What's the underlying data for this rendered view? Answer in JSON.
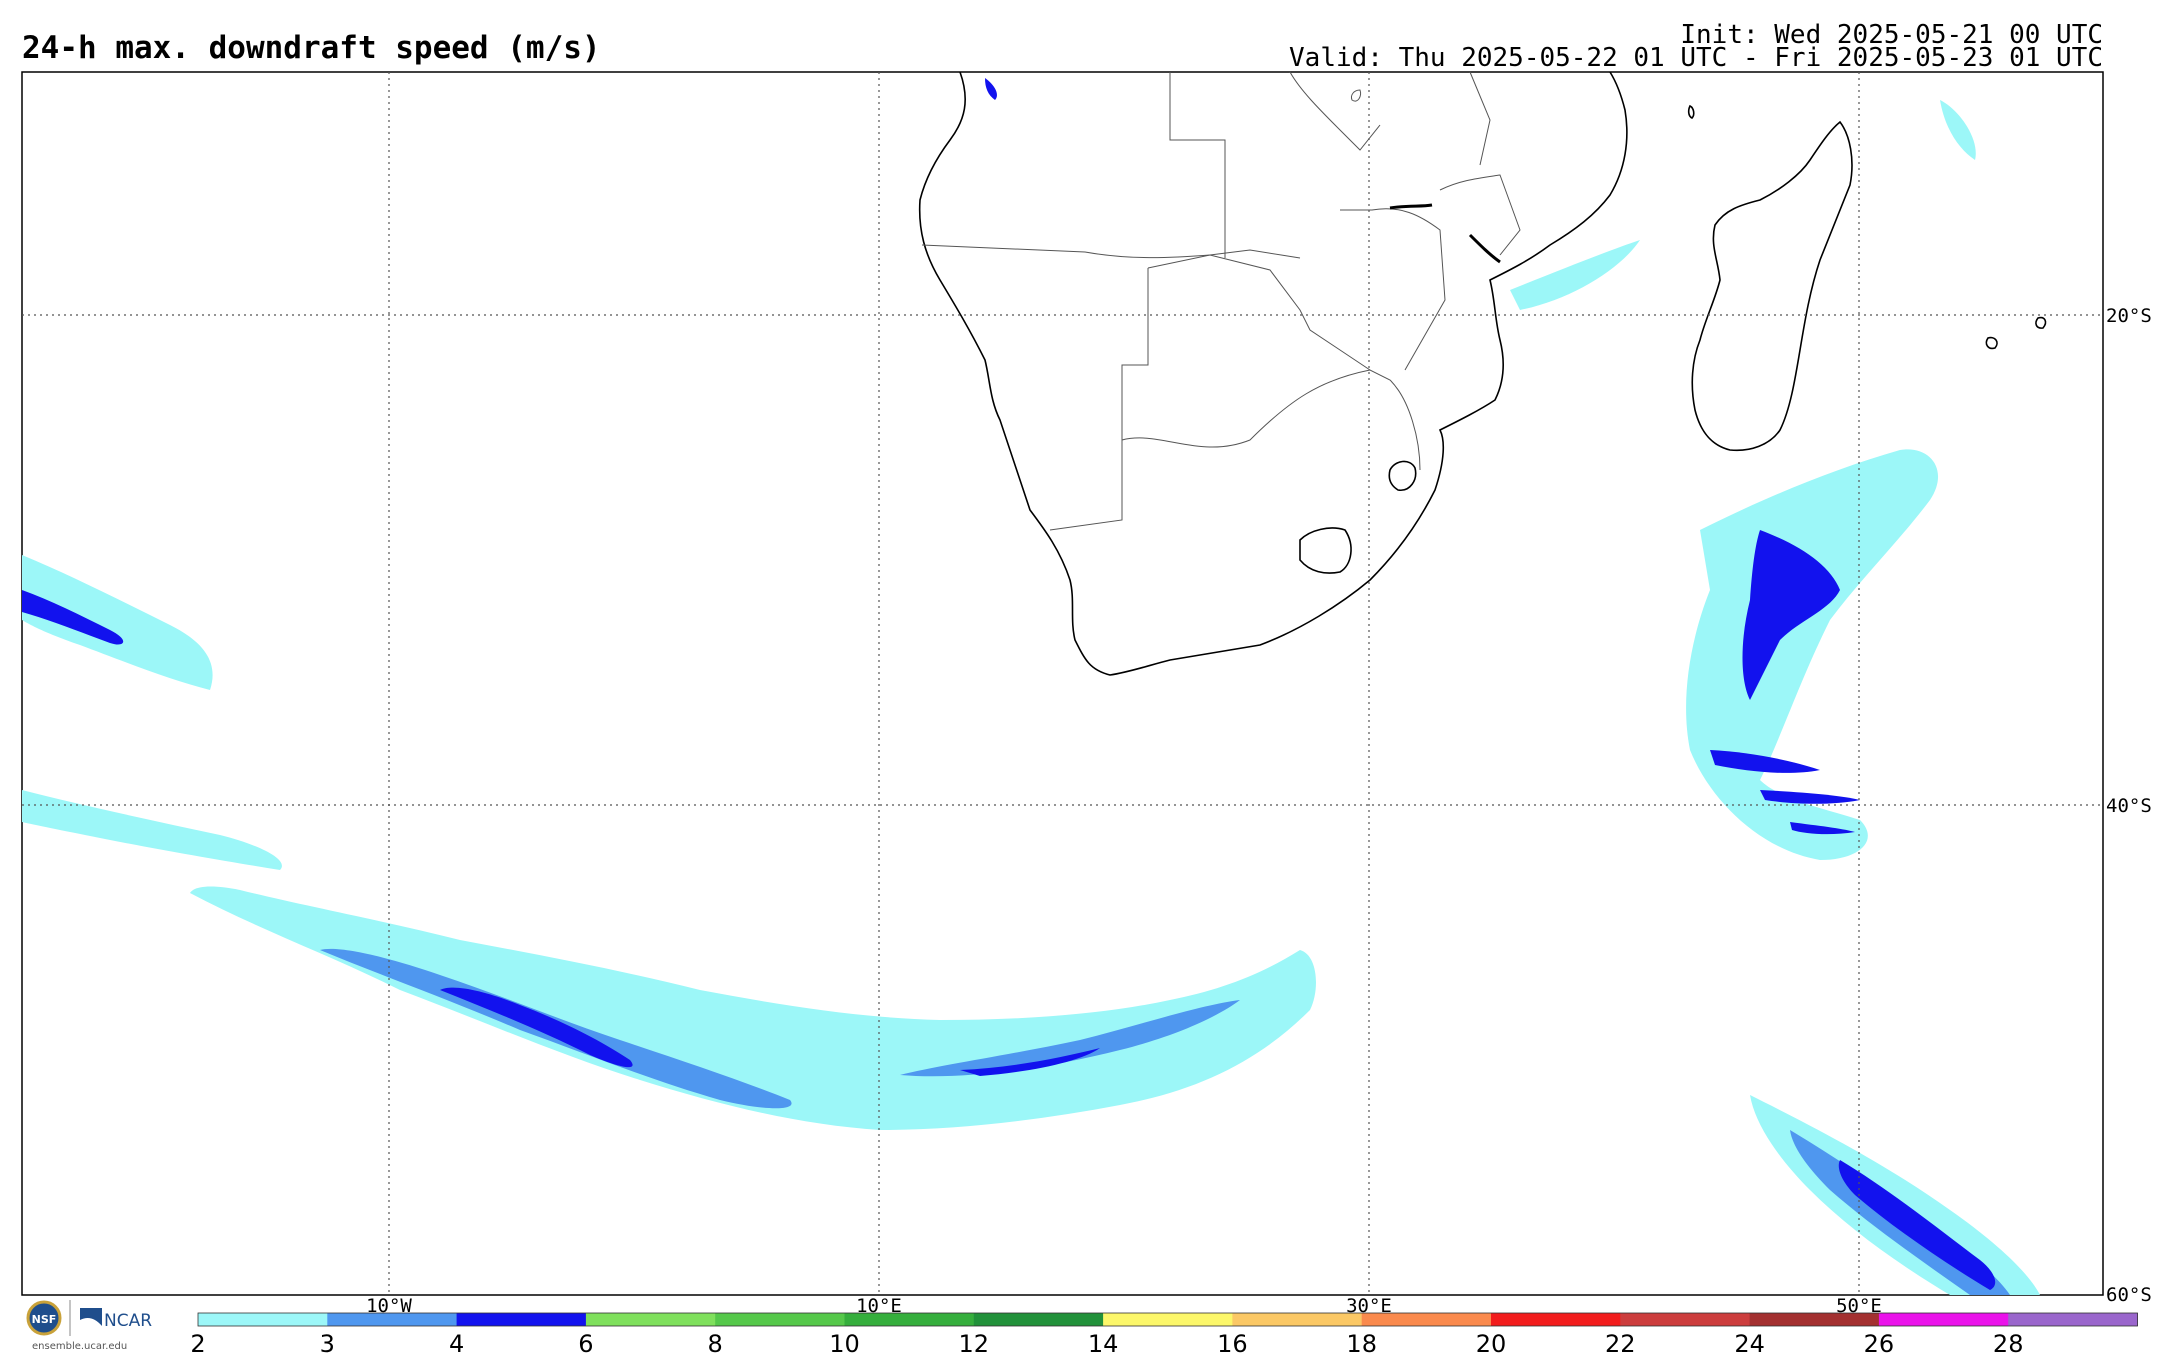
{
  "title": "24-h max. downdraft speed (m/s)",
  "init": "Init: Wed 2025-05-21 00 UTC",
  "valid": "Valid: Thu 2025-05-22 01 UTC - Fri 2025-05-23 01 UTC",
  "lat_labels": [
    "20°S",
    "40°S",
    "60°S"
  ],
  "lon_labels": [
    "10°W",
    "10°E",
    "30°E",
    "50°E"
  ],
  "colorbar": {
    "ticks": [
      "2",
      "3",
      "4",
      "6",
      "8",
      "10",
      "12",
      "14",
      "16",
      "18",
      "20",
      "22",
      "24",
      "26",
      "28"
    ],
    "colors": [
      "#9cf7f8",
      "#4f97ef",
      "#1212ee",
      "#7fe05c",
      "#55c84a",
      "#35ae3c",
      "#21913a",
      "#fcf76a",
      "#fbc865",
      "#fa8a4d",
      "#f21c1c",
      "#cc3d3d",
      "#a33030",
      "#ea12ea",
      "#9a66cc"
    ]
  },
  "logo": {
    "nsf": "NSF",
    "ncar": "NCAR",
    "url": "ensemble.ucar.edu"
  }
}
